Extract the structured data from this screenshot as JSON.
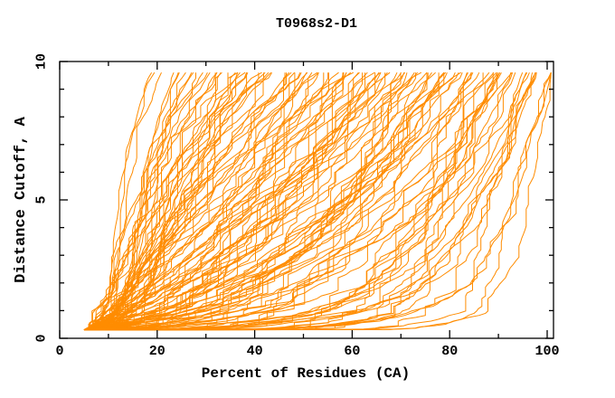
{
  "colors": {
    "background": "#FFFFFF",
    "curve": "#FF8C00",
    "axis": "#000000",
    "text": "#000000"
  },
  "chart_data": {
    "type": "line",
    "title": "T0968s2-D1",
    "xlabel": "Percent of Residues (CA)",
    "ylabel": "Distance Cutoff, A",
    "xlim": [
      0,
      101.3
    ],
    "ylim": [
      0,
      10
    ],
    "x_ticks_major": [
      0,
      20,
      40,
      60,
      80,
      100
    ],
    "x_tick_labels": [
      "0",
      "20",
      "40",
      "60",
      "80",
      "100"
    ],
    "x_ticks_minor": [
      10,
      30,
      50,
      70,
      90
    ],
    "y_ticks_major": [
      0,
      5,
      10
    ],
    "y_tick_labels": [
      "0",
      "5",
      "10"
    ],
    "y_ticks_minor": [
      1,
      2,
      3,
      4,
      6,
      7,
      8,
      9
    ],
    "grid": false,
    "legend": "none",
    "series_color": "#FF8C00",
    "description": "CASP-style cumulative accuracy plot for target T0968s2-D1. Each thin orange curve is one predicted model: x = percent of CA residues superimposable within the distance cutoff y (Angstroms). All curves emanate from about (5%, 0.3 A) and are clipped at 9.6 A; the fastest model reaches the top near 20% and the slowest models hug the bottom out to ~90% before rising near 100%.",
    "curves": {
      "count": 130,
      "seed": 968201,
      "start": [
        5,
        0.3
      ],
      "y_top": 9.6,
      "x_top_min": 19.5,
      "x_top_max": 101,
      "x_clip": 100.8,
      "steps": 70,
      "envelope_fastest": [
        [
          5,
          0.3
        ],
        [
          12,
          1.0
        ],
        [
          14,
          3.0
        ],
        [
          16,
          5.0
        ],
        [
          20,
          9.6
        ]
      ],
      "envelope_slowest": [
        [
          5,
          0.3
        ],
        [
          30,
          0.7
        ],
        [
          55,
          1.3
        ],
        [
          82,
          2.2
        ],
        [
          90,
          2.6
        ],
        [
          97,
          6.0
        ],
        [
          100.5,
          9.6
        ]
      ]
    }
  }
}
